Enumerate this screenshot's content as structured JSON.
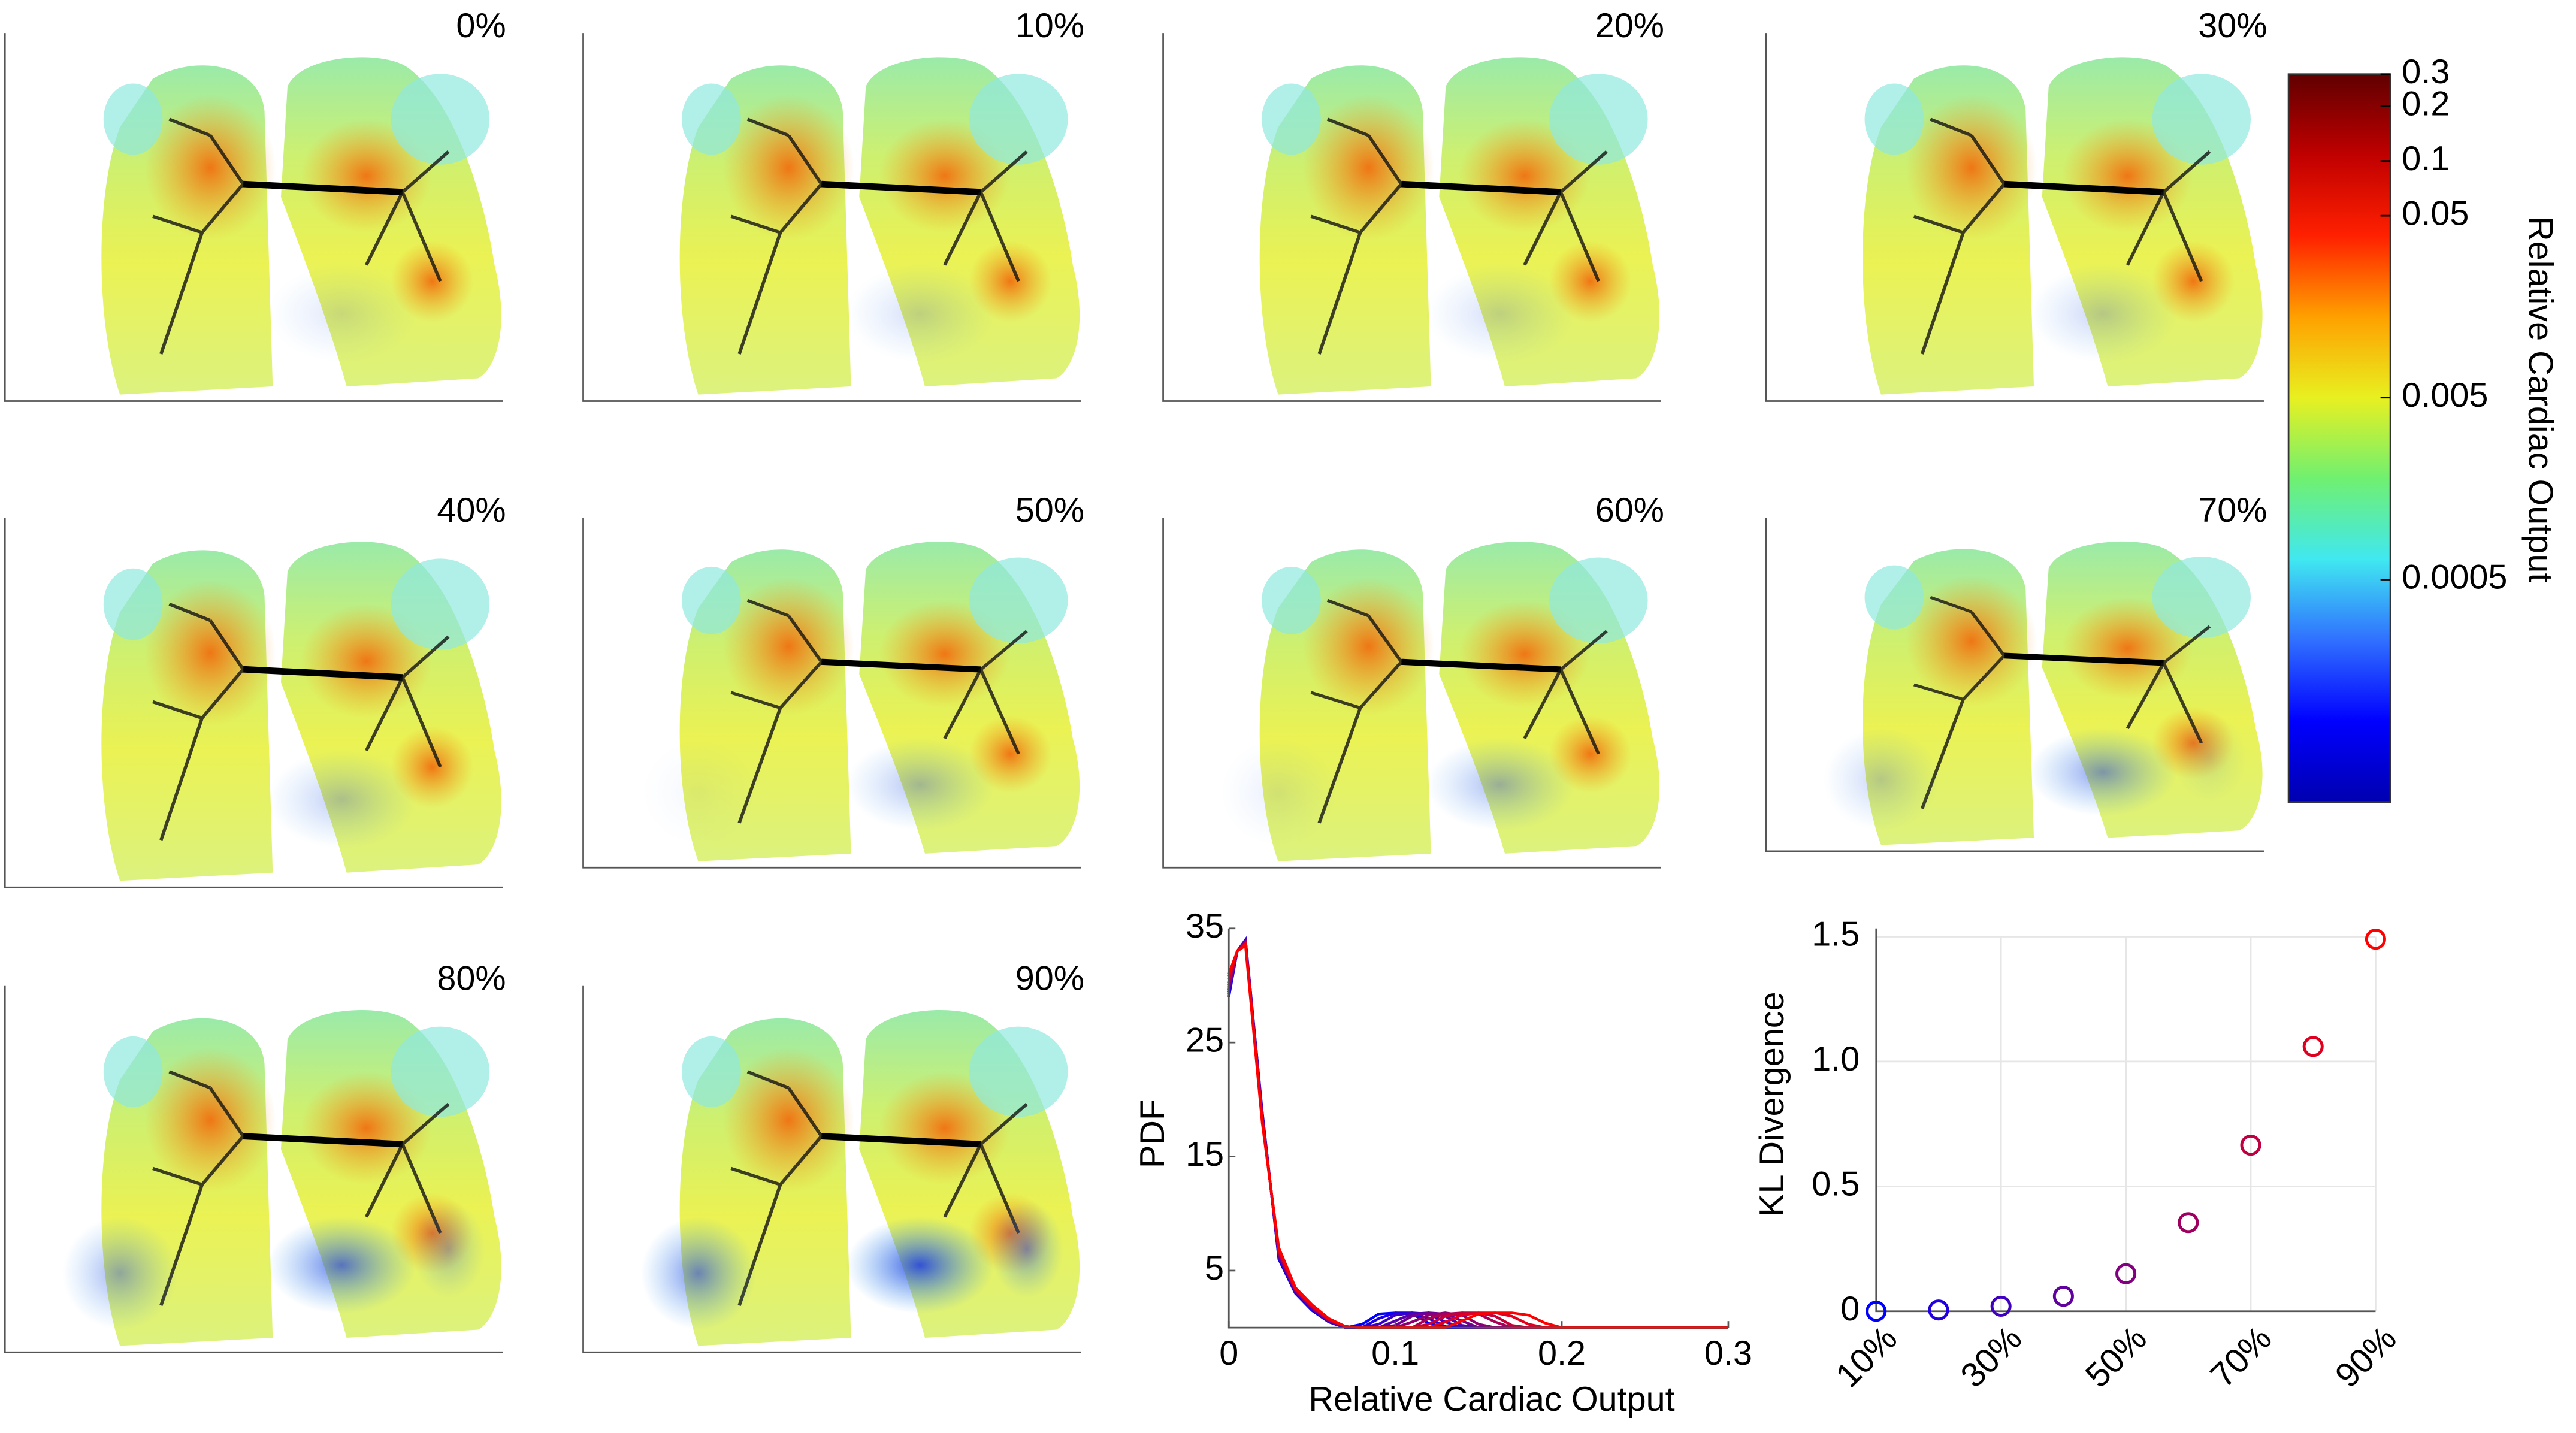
{
  "panels": [
    {
      "label": "0%"
    },
    {
      "label": "10%"
    },
    {
      "label": "20%"
    },
    {
      "label": "30%"
    },
    {
      "label": "40%"
    },
    {
      "label": "50%"
    },
    {
      "label": "60%"
    },
    {
      "label": "70%"
    },
    {
      "label": "80%"
    },
    {
      "label": "90%"
    }
  ],
  "colorbar": {
    "label": "Relative Cardiac Output",
    "log": true,
    "lim": [
      3e-05,
      0.3
    ],
    "ticks": [
      0.0005,
      0.005,
      0.05,
      0.1,
      0.2,
      0.3
    ],
    "colors": [
      "#0000b0",
      "#0000ff",
      "#3070ff",
      "#40e8f0",
      "#70f070",
      "#e8f020",
      "#ffa000",
      "#ff2000",
      "#c00000",
      "#600000"
    ]
  },
  "chart_data": [
    {
      "type": "line",
      "xlabel": "Relative Cardiac Output",
      "ylabel": "PDF",
      "x": [
        0,
        0.005,
        0.01,
        0.02,
        0.03,
        0.04,
        0.05,
        0.06,
        0.07,
        0.08,
        0.09,
        0.1,
        0.11,
        0.12,
        0.13,
        0.14,
        0.15,
        0.16,
        0.17,
        0.18,
        0.19,
        0.2,
        0.3
      ],
      "xlim": [
        0,
        0.3
      ],
      "xticks": [
        0,
        0.1,
        0.2,
        0.3
      ],
      "ylim": [
        0,
        35
      ],
      "yticks": [
        5,
        15,
        25,
        35
      ],
      "series": [
        {
          "color": "#0000ff",
          "values": [
            29,
            33,
            34,
            19,
            6,
            3,
            1.5,
            0.5,
            0,
            0.3,
            1.2,
            1.3,
            1.2,
            0.4,
            0,
            0,
            0,
            0,
            0,
            0,
            0,
            0,
            0
          ]
        },
        {
          "color": "#1c00e3",
          "values": [
            29.2,
            33,
            34,
            18.9,
            6.1,
            3.1,
            1.6,
            0.5,
            0,
            0,
            0.8,
            1.3,
            1.3,
            0.8,
            0.1,
            0,
            0,
            0,
            0,
            0,
            0,
            0,
            0
          ]
        },
        {
          "color": "#3900c6",
          "values": [
            29.4,
            33,
            33.9,
            18.8,
            6.2,
            3.1,
            1.6,
            0.6,
            0,
            0,
            0.3,
            1.1,
            1.3,
            1.2,
            0.5,
            0,
            0,
            0,
            0,
            0,
            0,
            0,
            0
          ]
        },
        {
          "color": "#5500aa",
          "values": [
            29.6,
            33,
            33.9,
            18.7,
            6.3,
            3.2,
            1.7,
            0.6,
            0.1,
            0,
            0,
            0.6,
            1.2,
            1.3,
            1,
            0.2,
            0,
            0,
            0,
            0,
            0,
            0,
            0
          ]
        },
        {
          "color": "#71008e",
          "values": [
            29.8,
            33,
            33.8,
            18.6,
            6.4,
            3.2,
            1.7,
            0.6,
            0.1,
            0,
            0,
            0.2,
            1,
            1.3,
            1.2,
            0.6,
            0,
            0,
            0,
            0,
            0,
            0,
            0
          ]
        },
        {
          "color": "#8e0071",
          "values": [
            30,
            33,
            33.8,
            18.5,
            6.5,
            3.3,
            1.8,
            0.7,
            0.1,
            0,
            0,
            0,
            0.5,
            1.1,
            1.3,
            1.1,
            0.3,
            0,
            0,
            0,
            0,
            0,
            0
          ]
        },
        {
          "color": "#aa0055",
          "values": [
            30.2,
            33,
            33.7,
            18.4,
            6.6,
            3.3,
            1.8,
            0.7,
            0.1,
            0,
            0,
            0,
            0,
            0.8,
            1.2,
            1.3,
            1.2,
            0.5,
            0,
            0,
            0,
            0,
            0
          ]
        },
        {
          "color": "#c60039",
          "values": [
            30.5,
            33,
            33.7,
            18.3,
            6.7,
            3.4,
            1.9,
            0.7,
            0.1,
            0,
            0,
            0,
            0,
            0.3,
            1,
            1.3,
            1.3,
            1,
            0.2,
            0,
            0,
            0,
            0
          ]
        },
        {
          "color": "#e3001c",
          "values": [
            30.8,
            33,
            33.6,
            18.2,
            6.8,
            3.4,
            1.9,
            0.8,
            0.1,
            0,
            0,
            0,
            0,
            0,
            0.5,
            1.1,
            1.3,
            1.3,
            1,
            0.3,
            0,
            0,
            0
          ]
        },
        {
          "color": "#ff0000",
          "values": [
            31,
            33,
            33.5,
            18,
            7,
            3.5,
            2,
            0.8,
            0.1,
            0,
            0,
            0,
            0,
            0,
            0,
            0.6,
            1.2,
            1.3,
            1.3,
            1.1,
            0.4,
            0,
            0
          ]
        }
      ]
    },
    {
      "type": "scatter",
      "ylabel": "KL Divergence",
      "categories": [
        "10%",
        null,
        "30%",
        null,
        "50%",
        null,
        "70%",
        null,
        "90%"
      ],
      "values": [
        0,
        0.005,
        0.02,
        0.06,
        0.15,
        0.355,
        0.665,
        1.06,
        1.49
      ],
      "colors": [
        "#0000ff",
        "#2000df",
        "#4000bf",
        "#60009f",
        "#80007f",
        "#9f0060",
        "#bf0040",
        "#df0020",
        "#ff0000"
      ],
      "ylim": [
        0,
        1.5
      ],
      "yticks": [
        0,
        0.5,
        {
          "value": 1,
          "label": "1.0"
        },
        1.5
      ],
      "grid": true
    }
  ]
}
